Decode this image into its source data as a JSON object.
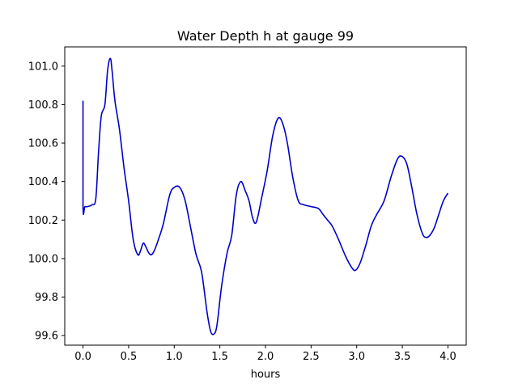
{
  "chart_data": {
    "type": "line",
    "title": "Water Depth h at gauge 99",
    "xlabel": "hours",
    "ylabel": "",
    "xlim": [
      -0.2,
      4.2
    ],
    "ylim": [
      99.55,
      101.1
    ],
    "xticks": [
      0.0,
      0.5,
      1.0,
      1.5,
      2.0,
      2.5,
      3.0,
      3.5,
      4.0
    ],
    "xtick_labels": [
      "0.0",
      "0.5",
      "1.0",
      "1.5",
      "2.0",
      "2.5",
      "3.0",
      "3.5",
      "4.0"
    ],
    "yticks": [
      99.6,
      99.8,
      100.0,
      100.2,
      100.4,
      100.6,
      100.8,
      101.0
    ],
    "ytick_labels": [
      "99.6",
      "99.8",
      "100.0",
      "100.2",
      "100.4",
      "100.6",
      "100.8",
      "101.0"
    ],
    "grid": false,
    "legend": "none",
    "series": [
      {
        "color": "#0000cc",
        "x": [
          0.0,
          0.0,
          0.02,
          0.05,
          0.1,
          0.14,
          0.17,
          0.2,
          0.24,
          0.27,
          0.3,
          0.32,
          0.35,
          0.4,
          0.45,
          0.5,
          0.55,
          0.6,
          0.63,
          0.66,
          0.69,
          0.72,
          0.75,
          0.78,
          0.82,
          0.88,
          0.95,
          1.0,
          1.06,
          1.12,
          1.18,
          1.24,
          1.3,
          1.36,
          1.4,
          1.44,
          1.47,
          1.52,
          1.58,
          1.63,
          1.68,
          1.73,
          1.78,
          1.82,
          1.86,
          1.9,
          1.96,
          2.02,
          2.08,
          2.14,
          2.19,
          2.24,
          2.3,
          2.36,
          2.42,
          2.5,
          2.58,
          2.63,
          2.68,
          2.73,
          2.8,
          2.88,
          2.95,
          2.99,
          3.04,
          3.1,
          3.16,
          3.22,
          3.3,
          3.38,
          3.45,
          3.5,
          3.55,
          3.6,
          3.66,
          3.72,
          3.76,
          3.8,
          3.85,
          3.9,
          3.95,
          4.0
        ],
        "y": [
          100.82,
          100.27,
          100.27,
          100.27,
          100.28,
          100.31,
          100.55,
          100.74,
          100.8,
          100.98,
          101.04,
          100.97,
          100.82,
          100.67,
          100.47,
          100.3,
          100.1,
          100.02,
          100.04,
          100.08,
          100.06,
          100.03,
          100.02,
          100.04,
          100.09,
          100.18,
          100.33,
          100.37,
          100.37,
          100.3,
          100.16,
          100.02,
          99.93,
          99.72,
          99.62,
          99.61,
          99.66,
          99.86,
          100.03,
          100.12,
          100.33,
          100.4,
          100.35,
          100.3,
          100.21,
          100.19,
          100.32,
          100.46,
          100.64,
          100.73,
          100.7,
          100.6,
          100.42,
          100.3,
          100.28,
          100.27,
          100.26,
          100.23,
          100.2,
          100.17,
          100.1,
          100.01,
          99.95,
          99.94,
          99.98,
          100.07,
          100.17,
          100.23,
          100.3,
          100.43,
          100.52,
          100.53,
          100.49,
          100.38,
          100.23,
          100.13,
          100.11,
          100.12,
          100.16,
          100.23,
          100.3,
          100.34
        ]
      }
    ]
  }
}
